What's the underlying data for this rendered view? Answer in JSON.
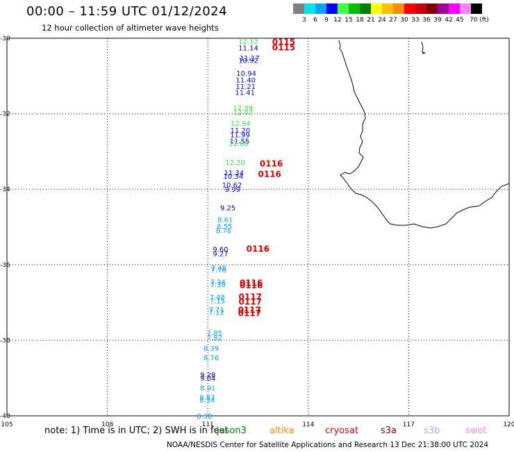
{
  "header": {
    "title": "00:00 – 11:59 UTC 01/12/2024",
    "subtitle": "12 hour collection of altimeter wave heights"
  },
  "color_scale": {
    "labels": [
      "3",
      "6",
      "9",
      "12",
      "15",
      "18",
      "21",
      "24",
      "27",
      "30",
      "33",
      "36",
      "39",
      "42",
      "45",
      "70 (ft)"
    ],
    "colors": [
      "#808080",
      "#00e5e5",
      "#00a5ff",
      "#0000ff",
      "#40ff40",
      "#00c000",
      "#008000",
      "#ffff00",
      "#ffc000",
      "#ff8c00",
      "#ff0000",
      "#c80000",
      "#800000",
      "#a000a0",
      "#ff00ff",
      "#ff80ff",
      "#000000"
    ]
  },
  "axes": {
    "lat_labels": [
      "-30",
      "-32",
      "-34",
      "-36",
      "-38",
      "-40"
    ],
    "lon_labels": [
      "105",
      "108",
      "111",
      "114",
      "117",
      "120"
    ],
    "lat_values": [
      -30,
      -32,
      -34,
      -36,
      -38,
      -40
    ],
    "lon_values": [
      105,
      108,
      111,
      114,
      117,
      120
    ]
  },
  "observations": [
    {
      "lon": 112.21,
      "lat": -30.08,
      "v": "12.12",
      "c": "#40e040"
    },
    {
      "lon": 112.21,
      "lat": -30.25,
      "v": "11.14",
      "c": "#0000c0"
    },
    {
      "lon": 112.25,
      "lat": -30.52,
      "v": "11.17",
      "c": "#0000ff"
    },
    {
      "lon": 112.21,
      "lat": -30.58,
      "v": "10.92",
      "c": "#0000ff"
    },
    {
      "lon": 112.15,
      "lat": -30.92,
      "v": "10.94",
      "c": "#0000ff"
    },
    {
      "lon": 112.13,
      "lat": -31.1,
      "v": "11.40",
      "c": "#0000ff"
    },
    {
      "lon": 112.13,
      "lat": -31.27,
      "v": "11.21",
      "c": "#0000ff"
    },
    {
      "lon": 112.11,
      "lat": -31.43,
      "v": "11.41",
      "c": "#0000ff"
    },
    {
      "lon": 112.05,
      "lat": -31.83,
      "v": "12.39",
      "c": "#40e040"
    },
    {
      "lon": 112.05,
      "lat": -31.95,
      "v": "12.03",
      "c": "#40e040"
    },
    {
      "lon": 111.98,
      "lat": -32.25,
      "v": "12.94",
      "c": "#40e040"
    },
    {
      "lon": 111.97,
      "lat": -32.43,
      "v": "11.20",
      "c": "#0000ff"
    },
    {
      "lon": 111.96,
      "lat": -32.55,
      "v": "11.99",
      "c": "#0000ff"
    },
    {
      "lon": 111.95,
      "lat": -32.72,
      "v": "11.55",
      "c": "#0000ff"
    },
    {
      "lon": 111.92,
      "lat": -32.78,
      "v": "12.00",
      "c": "#40e040"
    },
    {
      "lon": 111.82,
      "lat": -33.28,
      "v": "12.20",
      "c": "#40e040"
    },
    {
      "lon": 111.78,
      "lat": -33.55,
      "v": "11.34",
      "c": "#0000ff"
    },
    {
      "lon": 111.76,
      "lat": -33.65,
      "v": "10.34",
      "c": "#0000ff"
    },
    {
      "lon": 111.72,
      "lat": -33.88,
      "v": "10.62",
      "c": "#0000ff"
    },
    {
      "lon": 111.74,
      "lat": -34.0,
      "v": "9.99",
      "c": "#0000ff"
    },
    {
      "lon": 111.6,
      "lat": -34.48,
      "v": "9.25",
      "c": "#0000c0"
    },
    {
      "lon": 111.52,
      "lat": -34.8,
      "v": "8.61",
      "c": "#00a5ff"
    },
    {
      "lon": 111.5,
      "lat": -34.97,
      "v": "8.55",
      "c": "#00a5ff"
    },
    {
      "lon": 111.47,
      "lat": -35.08,
      "v": "8.76",
      "c": "#00a5ff"
    },
    {
      "lon": 111.38,
      "lat": -35.58,
      "v": "9.60",
      "c": "#0000c0"
    },
    {
      "lon": 111.38,
      "lat": -35.7,
      "v": "9.27",
      "c": "#0000ff"
    },
    {
      "lon": 111.32,
      "lat": -36.08,
      "v": "7.48",
      "c": "#00a5ff"
    },
    {
      "lon": 111.32,
      "lat": -36.13,
      "v": "7.76",
      "c": "#00a5ff"
    },
    {
      "lon": 111.3,
      "lat": -36.45,
      "v": "7.34",
      "c": "#00a5ff"
    },
    {
      "lon": 111.3,
      "lat": -36.52,
      "v": "7.39",
      "c": "#00a5ff"
    },
    {
      "lon": 111.28,
      "lat": -36.85,
      "v": "7.48",
      "c": "#00a5ff"
    },
    {
      "lon": 111.28,
      "lat": -36.95,
      "v": "7.15",
      "c": "#00a5ff"
    },
    {
      "lon": 111.26,
      "lat": -37.18,
      "v": "7.71",
      "c": "#00a5ff"
    },
    {
      "lon": 111.26,
      "lat": -37.25,
      "v": "7.12",
      "c": "#00a5ff"
    },
    {
      "lon": 111.2,
      "lat": -37.8,
      "v": "7.85",
      "c": "#00a5ff"
    },
    {
      "lon": 111.2,
      "lat": -37.92,
      "v": "7.82",
      "c": "#00a5ff"
    },
    {
      "lon": 111.1,
      "lat": -38.2,
      "v": "8.39",
      "c": "#00a5ff"
    },
    {
      "lon": 111.1,
      "lat": -38.45,
      "v": "8.76",
      "c": "#00a5ff"
    },
    {
      "lon": 111.0,
      "lat": -38.9,
      "v": "9.28",
      "c": "#0000c0"
    },
    {
      "lon": 111.0,
      "lat": -39.0,
      "v": "9.04",
      "c": "#0000c0"
    },
    {
      "lon": 111.0,
      "lat": -39.25,
      "v": "8.91",
      "c": "#00a5ff"
    },
    {
      "lon": 110.98,
      "lat": -39.5,
      "v": "8.83",
      "c": "#00a5ff"
    },
    {
      "lon": 110.98,
      "lat": -39.58,
      "v": "8.34",
      "c": "#00a5ff"
    },
    {
      "lon": 110.9,
      "lat": -40.0,
      "v": "8.38",
      "c": "#00a5ff"
    }
  ],
  "passes": [
    {
      "lon": 112.92,
      "lat": -30.1,
      "v": "0115"
    },
    {
      "lon": 112.92,
      "lat": -30.25,
      "v": "0115"
    },
    {
      "lon": 112.55,
      "lat": -33.32,
      "v": "0116"
    },
    {
      "lon": 112.5,
      "lat": -33.6,
      "v": "0116"
    },
    {
      "lon": 112.15,
      "lat": -35.58,
      "v": "0116"
    },
    {
      "lon": 111.95,
      "lat": -36.48,
      "v": "0116"
    },
    {
      "lon": 111.95,
      "lat": -36.55,
      "v": "0116"
    },
    {
      "lon": 111.92,
      "lat": -36.85,
      "v": "0117"
    },
    {
      "lon": 111.92,
      "lat": -36.98,
      "v": "0117"
    },
    {
      "lon": 111.9,
      "lat": -37.2,
      "v": "0117"
    },
    {
      "lon": 111.9,
      "lat": -37.28,
      "v": "0117"
    }
  ],
  "footer": {
    "note": "note:  1) Time is in UTC; 2) SWH is in feet",
    "satellites": [
      {
        "name": "jason3",
        "color": "#008000"
      },
      {
        "name": "altika",
        "color": "#ff8c00"
      },
      {
        "name": "cryosat",
        "color": "#e00000"
      },
      {
        "name": "s3a",
        "color": "#800000"
      },
      {
        "name": "s3b",
        "color": "#b0a8ff"
      },
      {
        "name": "swot",
        "color": "#ff80ff"
      }
    ],
    "credit": "NOAA/NESDIS Center for Satellite Applications and Research    13 Dec 21:38:00 UTC 2024"
  }
}
